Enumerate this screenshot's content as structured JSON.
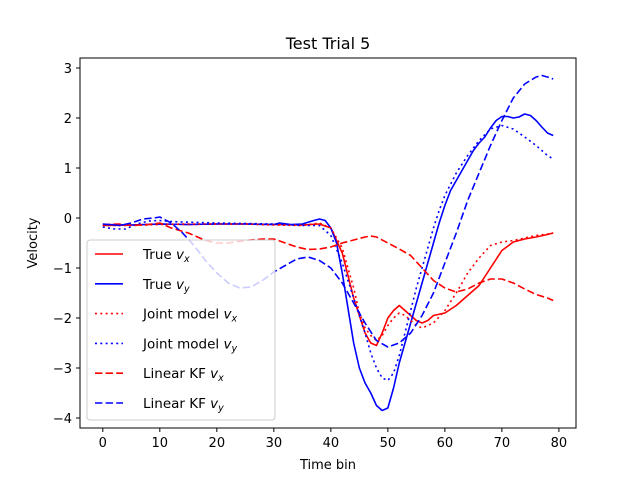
{
  "chart_data": {
    "type": "line",
    "title": "Test Trial 5",
    "xlabel": "Time bin",
    "ylabel": "Velocity",
    "xlim": [
      -4,
      83
    ],
    "ylim": [
      -4.2,
      3.2
    ],
    "xticks": [
      0,
      10,
      20,
      30,
      40,
      50,
      60,
      70,
      80
    ],
    "yticks": [
      -4,
      -3,
      -2,
      -1,
      0,
      1,
      2,
      3
    ],
    "ytick_labels": [
      "−4",
      "−3",
      "−2",
      "−1",
      "0",
      "1",
      "2",
      "3"
    ],
    "grid": false,
    "legend_position": "lower-left",
    "series": [
      {
        "name": "True vₓ",
        "legend_main": "True ",
        "legend_sub": "x",
        "color": "#ff0000",
        "dash": "solid",
        "points": [
          [
            0,
            -0.15
          ],
          [
            5,
            -0.14
          ],
          [
            10,
            -0.12
          ],
          [
            15,
            -0.13
          ],
          [
            20,
            -0.12
          ],
          [
            25,
            -0.12
          ],
          [
            30,
            -0.13
          ],
          [
            35,
            -0.14
          ],
          [
            38,
            -0.12
          ],
          [
            40,
            -0.2
          ],
          [
            42,
            -0.7
          ],
          [
            44,
            -1.6
          ],
          [
            46,
            -2.3
          ],
          [
            47,
            -2.5
          ],
          [
            48,
            -2.55
          ],
          [
            49,
            -2.3
          ],
          [
            50,
            -2.0
          ],
          [
            51,
            -1.85
          ],
          [
            52,
            -1.75
          ],
          [
            53,
            -1.85
          ],
          [
            54,
            -1.95
          ],
          [
            55,
            -2.05
          ],
          [
            56,
            -2.1
          ],
          [
            57,
            -2.05
          ],
          [
            58,
            -1.95
          ],
          [
            60,
            -1.9
          ],
          [
            62,
            -1.75
          ],
          [
            64,
            -1.55
          ],
          [
            66,
            -1.35
          ],
          [
            68,
            -1.0
          ],
          [
            70,
            -0.65
          ],
          [
            72,
            -0.48
          ],
          [
            74,
            -0.42
          ],
          [
            76,
            -0.38
          ],
          [
            78,
            -0.33
          ],
          [
            79,
            -0.3
          ]
        ]
      },
      {
        "name": "True vᵧ",
        "legend_main": "True ",
        "legend_sub": "y",
        "color": "#0000ff",
        "dash": "solid",
        "points": [
          [
            0,
            -0.13
          ],
          [
            5,
            -0.14
          ],
          [
            10,
            -0.12
          ],
          [
            15,
            -0.13
          ],
          [
            20,
            -0.12
          ],
          [
            25,
            -0.12
          ],
          [
            30,
            -0.13
          ],
          [
            31,
            -0.1
          ],
          [
            33,
            -0.13
          ],
          [
            35,
            -0.12
          ],
          [
            37,
            -0.05
          ],
          [
            38,
            -0.02
          ],
          [
            39,
            -0.05
          ],
          [
            40,
            -0.2
          ],
          [
            41,
            -0.5
          ],
          [
            42,
            -1.1
          ],
          [
            43,
            -1.8
          ],
          [
            44,
            -2.5
          ],
          [
            45,
            -3.0
          ],
          [
            46,
            -3.3
          ],
          [
            47,
            -3.5
          ],
          [
            48,
            -3.75
          ],
          [
            49,
            -3.85
          ],
          [
            50,
            -3.8
          ],
          [
            51,
            -3.4
          ],
          [
            52,
            -2.9
          ],
          [
            53,
            -2.5
          ],
          [
            54,
            -2.1
          ],
          [
            55,
            -1.7
          ],
          [
            56,
            -1.3
          ],
          [
            57,
            -0.9
          ],
          [
            58,
            -0.5
          ],
          [
            59,
            -0.1
          ],
          [
            60,
            0.25
          ],
          [
            61,
            0.55
          ],
          [
            62,
            0.75
          ],
          [
            63,
            0.95
          ],
          [
            64,
            1.15
          ],
          [
            65,
            1.35
          ],
          [
            66,
            1.5
          ],
          [
            67,
            1.62
          ],
          [
            68,
            1.8
          ],
          [
            69,
            1.95
          ],
          [
            70,
            2.03
          ],
          [
            71,
            2.03
          ],
          [
            72,
            2.0
          ],
          [
            73,
            2.02
          ],
          [
            74,
            2.08
          ],
          [
            75,
            2.05
          ],
          [
            76,
            1.95
          ],
          [
            77,
            1.82
          ],
          [
            78,
            1.7
          ],
          [
            79,
            1.65
          ]
        ]
      },
      {
        "name": "Joint model vₓ",
        "legend_main": "Joint model ",
        "legend_sub": "x",
        "color": "#ff0000",
        "dash": "dotted",
        "points": [
          [
            0,
            -0.15
          ],
          [
            5,
            -0.15
          ],
          [
            10,
            -0.13
          ],
          [
            15,
            -0.12
          ],
          [
            20,
            -0.12
          ],
          [
            25,
            -0.12
          ],
          [
            30,
            -0.14
          ],
          [
            35,
            -0.15
          ],
          [
            38,
            -0.1
          ],
          [
            40,
            -0.2
          ],
          [
            42,
            -0.6
          ],
          [
            44,
            -1.4
          ],
          [
            45,
            -1.9
          ],
          [
            46,
            -2.2
          ],
          [
            47,
            -2.35
          ],
          [
            48,
            -2.45
          ],
          [
            49,
            -2.35
          ],
          [
            50,
            -2.15
          ],
          [
            51,
            -2.0
          ],
          [
            52,
            -1.9
          ],
          [
            53,
            -1.95
          ],
          [
            54,
            -2.05
          ],
          [
            55,
            -2.15
          ],
          [
            56,
            -2.2
          ],
          [
            58,
            -2.1
          ],
          [
            60,
            -1.85
          ],
          [
            62,
            -1.5
          ],
          [
            64,
            -1.1
          ],
          [
            66,
            -0.8
          ],
          [
            68,
            -0.55
          ],
          [
            70,
            -0.48
          ],
          [
            72,
            -0.45
          ],
          [
            74,
            -0.4
          ],
          [
            76,
            -0.35
          ],
          [
            78,
            -0.32
          ],
          [
            79,
            -0.3
          ]
        ]
      },
      {
        "name": "Joint model vᵧ",
        "legend_main": "Joint model ",
        "legend_sub": "y",
        "color": "#0000ff",
        "dash": "dotted",
        "points": [
          [
            0,
            -0.18
          ],
          [
            2,
            -0.22
          ],
          [
            4,
            -0.22
          ],
          [
            6,
            -0.12
          ],
          [
            8,
            -0.06
          ],
          [
            10,
            -0.05
          ],
          [
            12,
            -0.07
          ],
          [
            14,
            -0.08
          ],
          [
            20,
            -0.1
          ],
          [
            30,
            -0.12
          ],
          [
            35,
            -0.15
          ],
          [
            38,
            -0.15
          ],
          [
            40,
            -0.35
          ],
          [
            42,
            -0.9
          ],
          [
            44,
            -1.6
          ],
          [
            46,
            -2.3
          ],
          [
            47,
            -2.7
          ],
          [
            48,
            -3.0
          ],
          [
            49,
            -3.2
          ],
          [
            50,
            -3.25
          ],
          [
            51,
            -3.1
          ],
          [
            52,
            -2.75
          ],
          [
            53,
            -2.3
          ],
          [
            54,
            -1.85
          ],
          [
            55,
            -1.4
          ],
          [
            56,
            -1.0
          ],
          [
            57,
            -0.6
          ],
          [
            58,
            -0.2
          ],
          [
            59,
            0.15
          ],
          [
            60,
            0.45
          ],
          [
            62,
            0.9
          ],
          [
            64,
            1.25
          ],
          [
            66,
            1.55
          ],
          [
            68,
            1.78
          ],
          [
            70,
            1.85
          ],
          [
            72,
            1.78
          ],
          [
            74,
            1.62
          ],
          [
            76,
            1.45
          ],
          [
            78,
            1.25
          ],
          [
            79,
            1.18
          ]
        ]
      },
      {
        "name": "Linear KF vₓ",
        "legend_main": "Linear KF ",
        "legend_sub": "x",
        "color": "#ff0000",
        "dash": "dashed",
        "points": [
          [
            0,
            -0.13
          ],
          [
            3,
            -0.12
          ],
          [
            5,
            -0.15
          ],
          [
            8,
            -0.13
          ],
          [
            10,
            -0.1
          ],
          [
            12,
            -0.2
          ],
          [
            15,
            -0.3
          ],
          [
            18,
            -0.45
          ],
          [
            20,
            -0.5
          ],
          [
            22,
            -0.5
          ],
          [
            25,
            -0.45
          ],
          [
            28,
            -0.42
          ],
          [
            30,
            -0.42
          ],
          [
            32,
            -0.5
          ],
          [
            34,
            -0.58
          ],
          [
            36,
            -0.63
          ],
          [
            38,
            -0.62
          ],
          [
            40,
            -0.58
          ],
          [
            42,
            -0.5
          ],
          [
            44,
            -0.44
          ],
          [
            46,
            -0.38
          ],
          [
            47,
            -0.36
          ],
          [
            48,
            -0.38
          ],
          [
            50,
            -0.5
          ],
          [
            52,
            -0.62
          ],
          [
            54,
            -0.75
          ],
          [
            56,
            -1.0
          ],
          [
            58,
            -1.25
          ],
          [
            60,
            -1.4
          ],
          [
            62,
            -1.48
          ],
          [
            64,
            -1.42
          ],
          [
            66,
            -1.3
          ],
          [
            68,
            -1.22
          ],
          [
            70,
            -1.22
          ],
          [
            72,
            -1.3
          ],
          [
            74,
            -1.42
          ],
          [
            76,
            -1.53
          ],
          [
            78,
            -1.6
          ],
          [
            79,
            -1.65
          ]
        ]
      },
      {
        "name": "Linear KF vᵧ",
        "legend_main": "Linear KF ",
        "legend_sub": "y",
        "color": "#0000ff",
        "dash": "dashed",
        "points": [
          [
            0,
            -0.12
          ],
          [
            3,
            -0.15
          ],
          [
            5,
            -0.1
          ],
          [
            7,
            -0.02
          ],
          [
            9,
            0.0
          ],
          [
            10,
            0.02
          ],
          [
            12,
            -0.1
          ],
          [
            14,
            -0.3
          ],
          [
            16,
            -0.55
          ],
          [
            18,
            -0.85
          ],
          [
            20,
            -1.1
          ],
          [
            22,
            -1.3
          ],
          [
            24,
            -1.4
          ],
          [
            26,
            -1.38
          ],
          [
            28,
            -1.25
          ],
          [
            30,
            -1.08
          ],
          [
            32,
            -0.95
          ],
          [
            34,
            -0.82
          ],
          [
            36,
            -0.78
          ],
          [
            38,
            -0.85
          ],
          [
            40,
            -1.0
          ],
          [
            42,
            -1.3
          ],
          [
            44,
            -1.7
          ],
          [
            46,
            -2.1
          ],
          [
            48,
            -2.45
          ],
          [
            50,
            -2.58
          ],
          [
            52,
            -2.5
          ],
          [
            54,
            -2.3
          ],
          [
            56,
            -1.95
          ],
          [
            58,
            -1.5
          ],
          [
            60,
            -0.9
          ],
          [
            62,
            -0.3
          ],
          [
            64,
            0.35
          ],
          [
            66,
            0.9
          ],
          [
            68,
            1.45
          ],
          [
            70,
            1.95
          ],
          [
            72,
            2.4
          ],
          [
            74,
            2.68
          ],
          [
            76,
            2.82
          ],
          [
            77,
            2.85
          ],
          [
            78,
            2.82
          ],
          [
            79,
            2.78
          ]
        ]
      }
    ]
  }
}
